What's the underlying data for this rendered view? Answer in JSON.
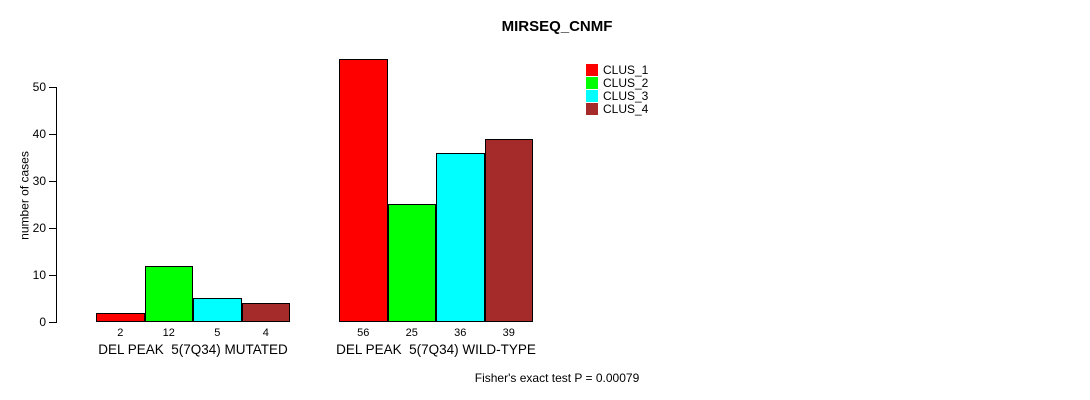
{
  "chart_data": {
    "type": "bar",
    "title": "MIRSEQ_CNMF",
    "xlabel": "",
    "ylabel": "number of cases",
    "ylim": [
      0,
      56
    ],
    "yticks": [
      0,
      10,
      20,
      30,
      40,
      50
    ],
    "grid": false,
    "bar_value_labels": true,
    "legend_position": "top-right-outside",
    "categories": [
      "DEL PEAK  5(7Q34) MUTATED",
      "DEL PEAK  5(7Q34) WILD-TYPE"
    ],
    "series": [
      {
        "name": "CLUS_1",
        "color": "#FF0000",
        "values": [
          2,
          56
        ]
      },
      {
        "name": "CLUS_2",
        "color": "#00FF00",
        "values": [
          12,
          25
        ]
      },
      {
        "name": "CLUS_3",
        "color": "#00FFFF",
        "values": [
          5,
          36
        ]
      },
      {
        "name": "CLUS_4",
        "color": "#A52A2A",
        "values": [
          4,
          39
        ]
      }
    ],
    "annotation": "Fisher's exact test P = 0.00079"
  }
}
